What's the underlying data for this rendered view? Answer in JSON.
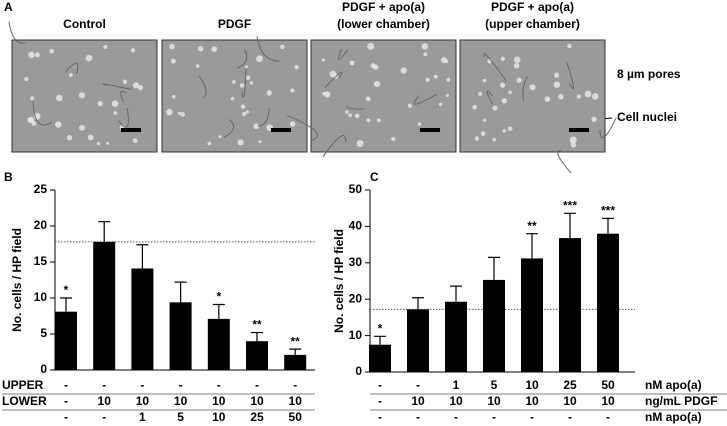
{
  "panel_a": {
    "label": "A",
    "images": [
      {
        "title_lines": [
          "Control"
        ]
      },
      {
        "title_lines": [
          "PDGF"
        ]
      },
      {
        "title_lines": [
          "PDGF + apo(a)",
          "(lower chamber)"
        ]
      },
      {
        "title_lines": [
          "PDGF + apo(a)",
          "(upper chamber)"
        ]
      }
    ],
    "annotations": [
      "8 µm pores",
      "Cell nuclei"
    ]
  },
  "chart_data": [
    {
      "type": "bar",
      "panel_label": "B",
      "y_label": "No. cells / HP field",
      "color": "#000000",
      "values": [
        8.1,
        17.8,
        14.1,
        9.4,
        7.1,
        4.0,
        2.1
      ],
      "errors": [
        1.9,
        2.8,
        3.3,
        2.8,
        2.0,
        1.2,
        0.8
      ],
      "significance": [
        "*",
        null,
        null,
        null,
        "*",
        "**",
        "**"
      ],
      "reference_line": 17.8,
      "ylim": [
        0,
        25
      ],
      "yticks": [
        0,
        5,
        10,
        15,
        20,
        25
      ],
      "condition_rows": [
        {
          "name": "UPPER",
          "cells": [
            "-",
            "-",
            "-",
            "-",
            "-",
            "-",
            "-"
          ]
        },
        {
          "name": "LOWER",
          "cells": [
            "-",
            "10",
            "10",
            "10",
            "10",
            "10",
            "10"
          ]
        },
        {
          "name": null,
          "cells": [
            "-",
            "-",
            "1",
            "5",
            "10",
            "25",
            "50"
          ]
        }
      ]
    },
    {
      "type": "bar",
      "panel_label": "C",
      "y_label": "No. cells / HP field",
      "color": "#000000",
      "values": [
        7.5,
        17.2,
        19.3,
        25.3,
        31.2,
        36.8,
        38.0
      ],
      "errors": [
        2.3,
        3.2,
        4.3,
        6.2,
        6.8,
        6.8,
        4.2
      ],
      "significance": [
        "*",
        null,
        null,
        null,
        "**",
        "***",
        "***"
      ],
      "reference_line": 17.2,
      "ylim": [
        0,
        50
      ],
      "yticks": [
        0,
        10,
        20,
        30,
        40,
        50
      ],
      "condition_rows": [
        {
          "name": "nM apo(a)",
          "cells": [
            "-",
            "-",
            "1",
            "5",
            "10",
            "25",
            "50"
          ]
        },
        {
          "name": "ng/mL PDGF",
          "cells": [
            "-",
            "10",
            "10",
            "10",
            "10",
            "10",
            "10"
          ]
        },
        {
          "name": "nM apo(a)",
          "cells": [
            "-",
            "-",
            "-",
            "-",
            "-",
            "-",
            "-"
          ]
        }
      ]
    }
  ]
}
